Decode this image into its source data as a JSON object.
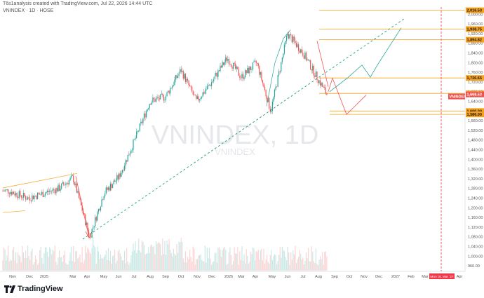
{
  "header": {
    "attribution": "T6s1analysis created with TradingView.com, Jul 22, 2026 14:44 UTC",
    "symbol_line": "VNINDEX · 1D · HOSE"
  },
  "watermark": {
    "big": "VNINDEX, 1D",
    "small": "VNINDEX"
  },
  "brand": {
    "name": "TradingView"
  },
  "colors": {
    "up": "#26a69a",
    "down": "#ef5350",
    "level": "#f7a21b",
    "projection_up": "#26a69a",
    "projection_down": "#ef5350",
    "trendline": "#1b9e77",
    "highlight": "#f23645"
  },
  "axis": {
    "unit": "point",
    "y_ticks": [
      "2,000.00",
      "1,960.00",
      "1,920.00",
      "1,880.00",
      "1,840.00",
      "1,800.00",
      "1,760.00",
      "1,720.00",
      "1,680.00",
      "1,640.00",
      "1,600.00",
      "1,560.00",
      "1,520.00",
      "1,480.00",
      "1,440.00",
      "1,400.00",
      "1,360.00",
      "1,320.00",
      "1,280.00",
      "1,240.00",
      "1,200.00",
      "1,160.00",
      "1,120.00",
      "1,080.00",
      "1,040.00",
      "1,000.00",
      "960.00"
    ],
    "x_ticks": [
      "Nov",
      "Dec",
      "2025",
      "Mar",
      "Apr",
      "May",
      "Jun",
      "Jul",
      "Aug",
      "Sep",
      "Oct",
      "Nov",
      "Dec",
      "2026",
      "Mar",
      "Apr",
      "May",
      "Jun",
      "Jul",
      "Aug",
      "Sep",
      "Oct",
      "Nov",
      "Dec",
      "2027",
      "Feb",
      "Mar",
      "Apr"
    ],
    "cursor_date": "Mon 01 Mar '27"
  },
  "price_tags": [
    {
      "label": "2,016.53",
      "value": 2016.53,
      "kind": "level"
    },
    {
      "label": "1,938.75",
      "value": 1938.75,
      "kind": "level"
    },
    {
      "label": "1,894.82",
      "value": 1894.82,
      "kind": "level"
    },
    {
      "label": "1,736.65",
      "value": 1736.65,
      "kind": "level"
    },
    {
      "label": "1,672.95",
      "value": 1672.95,
      "kind": "level"
    },
    {
      "label": "VNINDEX",
      "value": 1660,
      "kind": "symbol"
    },
    {
      "label": "1,668.53",
      "value": 1668.53,
      "kind": "last"
    },
    {
      "label": "1,600.00",
      "value": 1600.0,
      "kind": "level"
    },
    {
      "label": "1,586.00",
      "value": 1586.0,
      "kind": "level"
    }
  ],
  "chart_data": {
    "type": "line",
    "title": "VNINDEX, 1D",
    "ylabel": "point",
    "ylim": [
      940,
      2030
    ],
    "x": [
      "Nov 2024",
      "Dec 2024",
      "Jan 2025",
      "Feb 2025",
      "Mar 2025",
      "Apr 2025",
      "May 2025",
      "Jun 2025",
      "Jul 2025",
      "Aug 2025",
      "Sep 2025",
      "Oct 2025",
      "Nov 2025",
      "Dec 2025",
      "Jan 2026",
      "Feb 2026",
      "Mar 2026",
      "Apr 2026",
      "May 2026",
      "Jun 2026",
      "Jul 2026"
    ],
    "series": [
      {
        "values": [
          1270,
          1240,
          1260,
          1280,
          1325,
          1080,
          1260,
          1330,
          1480,
          1640,
          1660,
          1770,
          1640,
          1720,
          1820,
          1740,
          1800,
          1600,
          1920,
          1840,
          1668.53
        ]
      }
    ],
    "levels": [
      2016.53,
      1938.75,
      1894.82,
      1736.65,
      1672.95,
      1600.0,
      1586.0
    ]
  }
}
